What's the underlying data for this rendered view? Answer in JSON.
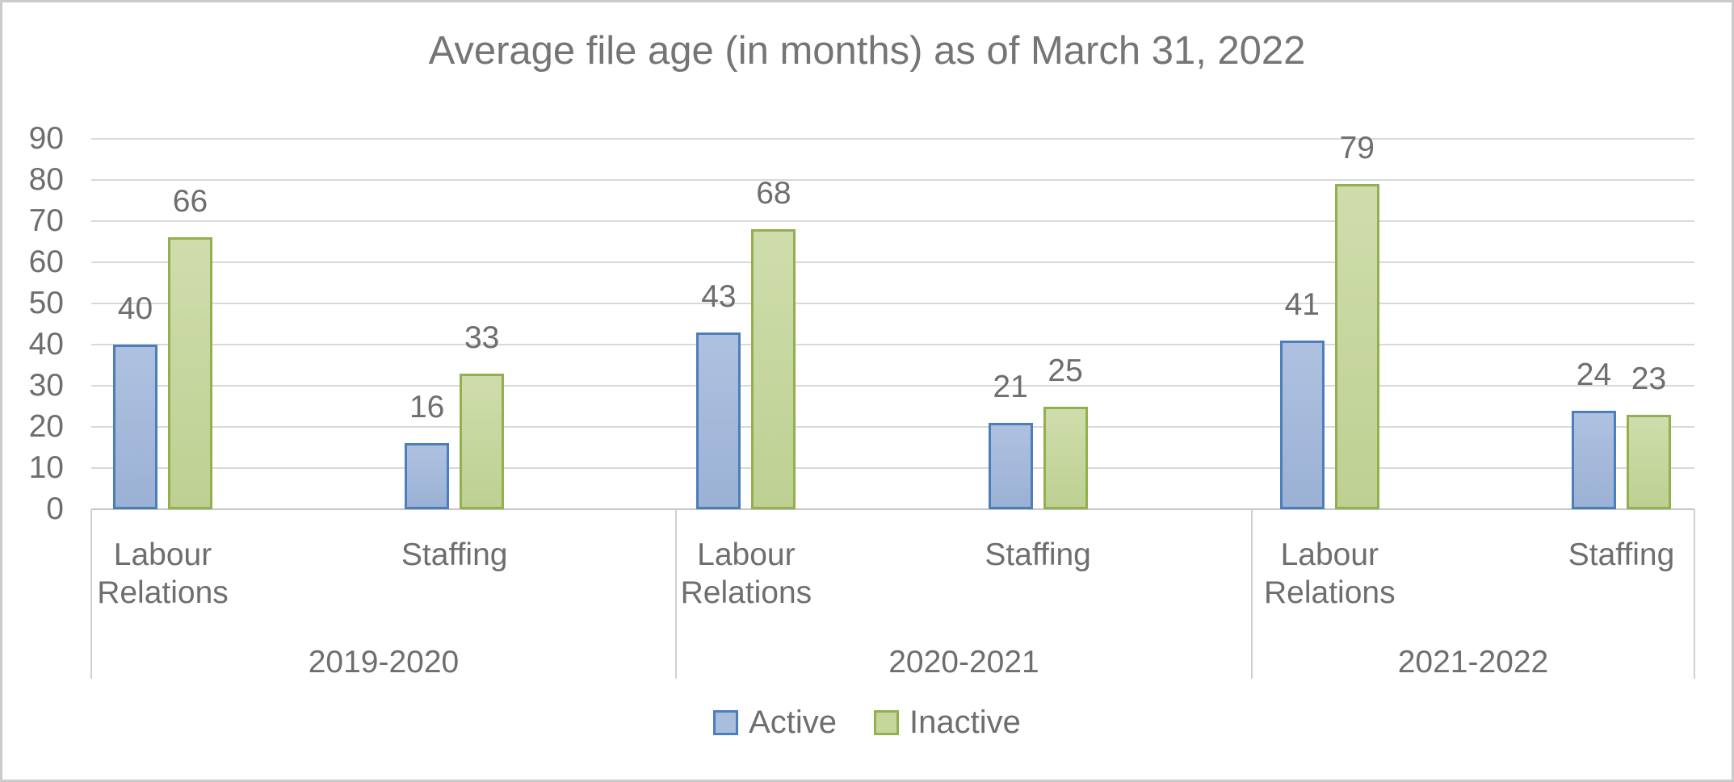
{
  "chart_data": {
    "type": "bar",
    "title": "Average file age (in months) as of March 31, 2022",
    "y_axis": {
      "min": 0,
      "max": 90,
      "step": 10,
      "ticks": [
        0,
        10,
        20,
        30,
        40,
        50,
        60,
        70,
        80,
        90
      ]
    },
    "series": [
      {
        "name": "Active",
        "border": "#4b7ebb",
        "fill_top": "#aec1e0",
        "fill_bottom": "#9bb1d5",
        "swatch_fill": "#a9bdde"
      },
      {
        "name": "Inactive",
        "border": "#92b04e",
        "fill_top": "#cfddac",
        "fill_bottom": "#bed092",
        "swatch_fill": "#c6d69d"
      }
    ],
    "groups": [
      {
        "label": "2019-2020",
        "categories": [
          {
            "label": "Labour Relations",
            "values": [
              40,
              66
            ]
          },
          {
            "label": "Staffing",
            "values": [
              16,
              33
            ]
          }
        ]
      },
      {
        "label": "2020-2021",
        "categories": [
          {
            "label": "Labour Relations",
            "values": [
              43,
              68
            ]
          },
          {
            "label": "Staffing",
            "values": [
              21,
              25
            ]
          }
        ]
      },
      {
        "label": "2021-2022",
        "categories": [
          {
            "label": "Labour Relations",
            "values": [
              41,
              79
            ]
          },
          {
            "label": "Staffing",
            "values": [
              24,
              23
            ]
          }
        ]
      }
    ],
    "legend": [
      "Active",
      "Inactive"
    ],
    "legend_position": "bottom",
    "grid": true,
    "colors": {
      "title_text": "#757575",
      "label_text": "#6e6e6e",
      "gridline": "#d9d9d9",
      "axis_line": "#c6c6c6",
      "divider": "#d0d0d0",
      "chart_border": "#cbcbcb",
      "background": "#ffffff"
    }
  }
}
